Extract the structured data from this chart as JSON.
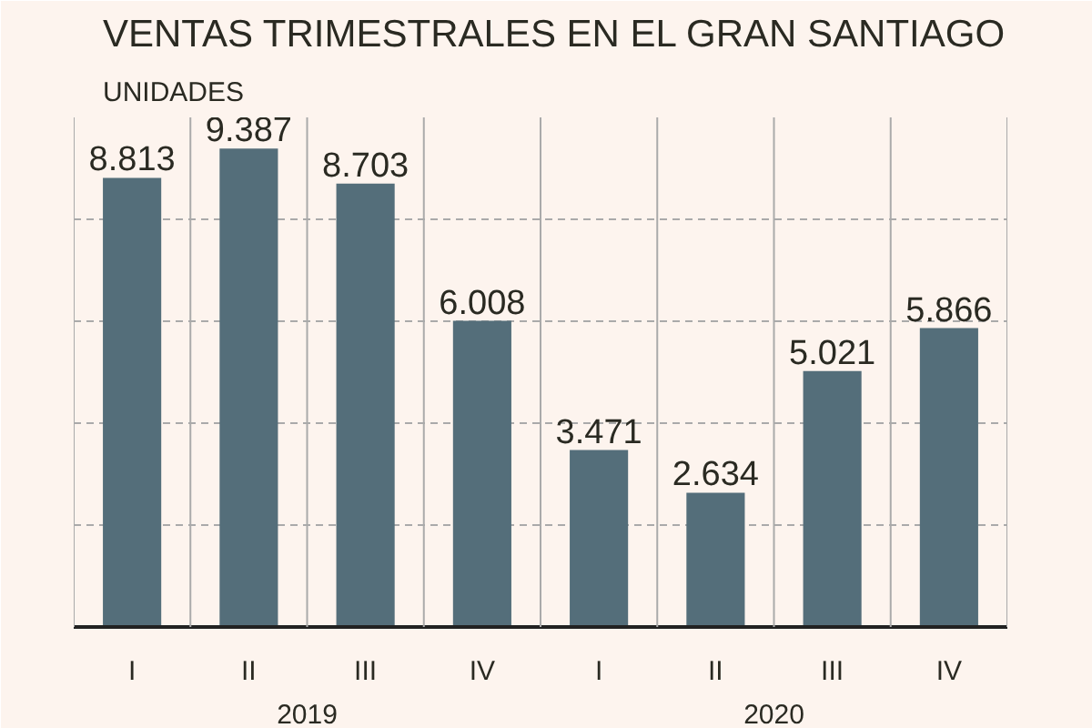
{
  "chart_data": {
    "type": "bar",
    "title": "VENTAS TRIMESTRALES EN EL GRAN SANTIAGO",
    "subtitle": "UNIDADES",
    "categories": [
      "I",
      "II",
      "III",
      "IV",
      "I",
      "II",
      "III",
      "IV"
    ],
    "values": [
      8813,
      9387,
      8703,
      6008,
      3471,
      2634,
      5021,
      5866
    ],
    "value_labels": [
      "8.813",
      "9.387",
      "8.703",
      "6.008",
      "3.471",
      "2.634",
      "5.021",
      "5.866"
    ],
    "color": "#546e7a",
    "ylim": [
      0,
      10000
    ],
    "yticks": [
      {
        "value": 0,
        "label": null
      },
      {
        "value": 2000,
        "label": null
      },
      {
        "value": 4000,
        "label": null
      },
      {
        "value": 6000,
        "label": null
      },
      {
        "value": 8000,
        "label": null
      },
      {
        "value": 10000,
        "label": null
      }
    ],
    "tick_labels": "x",
    "grid": true,
    "annotations": [
      "2019",
      "2020"
    ]
  }
}
